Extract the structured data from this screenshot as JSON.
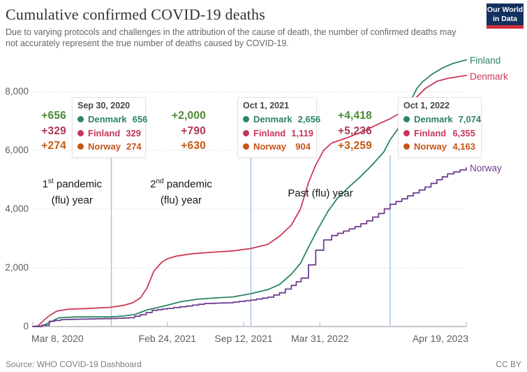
{
  "header": {
    "title": "Cumulative confirmed COVID-19 deaths",
    "subtitle_line1": "Due to varying protocols and challenges in the attribution of the cause of death, the number of confirmed deaths may",
    "subtitle_line2": "not accurately represent the true number of deaths caused by COVID-19.",
    "logo": {
      "line1": "Our World",
      "line2": "in Data",
      "bg_color": "#13315F",
      "accent_color": "#D1303E"
    }
  },
  "footer": {
    "source": "Source: WHO COVID-19 Dashboard",
    "license": "CC BY"
  },
  "colors": {
    "denmark_line": "#cb3a56",
    "finland_line": "#2C8465",
    "norway_line": "#6D3E91",
    "tooltip_row1": "#2C8465",
    "tooltip_row2": "#C7365B",
    "norway_orange": "#C75419",
    "delta_green": "#4A8A35",
    "delta_red": "#AC3A52",
    "delta_orange": "#C45911",
    "marker_blue": "#a9c8ea"
  },
  "chart_data": {
    "type": "line",
    "title": "Cumulative confirmed COVID-19 deaths",
    "x_range": [
      "2020-03-08",
      "2023-04-19"
    ],
    "ylim": [
      0,
      9500
    ],
    "grid": "horizontal-dotted",
    "legend_position": "end-of-line-labels",
    "x_ticks": [
      {
        "date": "2020-03-08",
        "label": "Mar 8, 2020"
      },
      {
        "date": "2021-02-24",
        "label": "Feb 24, 2021"
      },
      {
        "date": "2021-09-12",
        "label": "Sep 12, 2021"
      },
      {
        "date": "2022-03-31",
        "label": "Mar 31, 2022"
      },
      {
        "date": "2023-04-19",
        "label": "Apr 19, 2023"
      }
    ],
    "y_ticks": [
      {
        "value": 0,
        "label": "0"
      },
      {
        "value": 2000,
        "label": "2,000"
      },
      {
        "value": 4000,
        "label": "4,000"
      },
      {
        "value": 6000,
        "label": "6,000"
      },
      {
        "value": 8000,
        "label": "8,000"
      }
    ],
    "markers": [
      {
        "date": "2020-09-30"
      },
      {
        "date": "2021-10-01"
      },
      {
        "date": "2022-10-01"
      }
    ],
    "series": [
      {
        "name": "Denmark",
        "color": "#cb3a56",
        "line_style": "linear",
        "points": [
          [
            "2020-03-08",
            0
          ],
          [
            "2020-03-22",
            24
          ],
          [
            "2020-04-05",
            203
          ],
          [
            "2020-04-20",
            370
          ],
          [
            "2020-05-10",
            526
          ],
          [
            "2020-06-10",
            593
          ],
          [
            "2020-08-01",
            615
          ],
          [
            "2020-09-30",
            656
          ],
          [
            "2020-11-01",
            721
          ],
          [
            "2020-11-25",
            810
          ],
          [
            "2020-12-15",
            975
          ],
          [
            "2021-01-01",
            1298
          ],
          [
            "2021-01-20",
            1900
          ],
          [
            "2021-02-10",
            2200
          ],
          [
            "2021-02-24",
            2310
          ],
          [
            "2021-03-20",
            2400
          ],
          [
            "2021-05-01",
            2480
          ],
          [
            "2021-07-01",
            2537
          ],
          [
            "2021-08-15",
            2576
          ],
          [
            "2021-10-01",
            2656
          ],
          [
            "2021-11-15",
            2800
          ],
          [
            "2021-12-15",
            3075
          ],
          [
            "2022-01-15",
            3450
          ],
          [
            "2022-02-08",
            4000
          ],
          [
            "2022-03-01",
            4900
          ],
          [
            "2022-03-20",
            5500
          ],
          [
            "2022-04-10",
            6000
          ],
          [
            "2022-05-01",
            6250
          ],
          [
            "2022-06-15",
            6450
          ],
          [
            "2022-08-01",
            6700
          ],
          [
            "2022-09-01",
            6900
          ],
          [
            "2022-10-01",
            7074
          ],
          [
            "2022-11-01",
            7300
          ],
          [
            "2022-12-01",
            7700
          ],
          [
            "2023-01-01",
            8100
          ],
          [
            "2023-02-01",
            8350
          ],
          [
            "2023-03-01",
            8450
          ],
          [
            "2023-04-19",
            8550
          ]
        ]
      },
      {
        "name": "Finland",
        "color": "#2C8465",
        "line_style": "linear",
        "points": [
          [
            "2020-03-08",
            0
          ],
          [
            "2020-04-01",
            17
          ],
          [
            "2020-04-21",
            141
          ],
          [
            "2020-05-15",
            297
          ],
          [
            "2020-07-01",
            328
          ],
          [
            "2020-09-30",
            329
          ],
          [
            "2020-11-01",
            360
          ],
          [
            "2020-12-01",
            415
          ],
          [
            "2021-01-01",
            561
          ],
          [
            "2021-02-01",
            655
          ],
          [
            "2021-02-24",
            726
          ],
          [
            "2021-04-01",
            850
          ],
          [
            "2021-05-15",
            930
          ],
          [
            "2021-07-01",
            977
          ],
          [
            "2021-08-15",
            1010
          ],
          [
            "2021-10-01",
            1119
          ],
          [
            "2021-11-15",
            1260
          ],
          [
            "2021-12-15",
            1430
          ],
          [
            "2022-01-15",
            1780
          ],
          [
            "2022-02-08",
            2150
          ],
          [
            "2022-03-01",
            2700
          ],
          [
            "2022-03-25",
            3300
          ],
          [
            "2022-04-20",
            3900
          ],
          [
            "2022-05-15",
            4350
          ],
          [
            "2022-06-15",
            4750
          ],
          [
            "2022-07-15",
            5100
          ],
          [
            "2022-08-15",
            5500
          ],
          [
            "2022-09-15",
            5950
          ],
          [
            "2022-10-01",
            6355
          ],
          [
            "2022-10-20",
            6700
          ],
          [
            "2022-11-10",
            7200
          ],
          [
            "2022-11-25",
            7700
          ],
          [
            "2022-12-10",
            8100
          ],
          [
            "2022-12-25",
            8330
          ],
          [
            "2023-01-20",
            8600
          ],
          [
            "2023-02-15",
            8800
          ],
          [
            "2023-03-15",
            8960
          ],
          [
            "2023-04-19",
            9080
          ]
        ]
      },
      {
        "name": "Norway",
        "color": "#6D3E91",
        "line_style": "step",
        "points": [
          [
            "2020-03-08",
            0
          ],
          [
            "2020-04-01",
            44
          ],
          [
            "2020-04-20",
            181
          ],
          [
            "2020-05-20",
            235
          ],
          [
            "2020-07-15",
            255
          ],
          [
            "2020-09-30",
            274
          ],
          [
            "2020-11-15",
            300
          ],
          [
            "2020-12-15",
            404
          ],
          [
            "2021-01-15",
            550
          ],
          [
            "2021-02-24",
            620
          ],
          [
            "2021-04-15",
            700
          ],
          [
            "2021-06-01",
            785
          ],
          [
            "2021-08-01",
            810
          ],
          [
            "2021-10-01",
            904
          ],
          [
            "2021-11-15",
            1000
          ],
          [
            "2021-12-15",
            1150
          ],
          [
            "2022-01-15",
            1400
          ],
          [
            "2022-02-10",
            1650
          ],
          [
            "2022-03-01",
            2100
          ],
          [
            "2022-03-20",
            2600
          ],
          [
            "2022-04-10",
            2950
          ],
          [
            "2022-05-01",
            3100
          ],
          [
            "2022-06-01",
            3250
          ],
          [
            "2022-07-01",
            3400
          ],
          [
            "2022-08-01",
            3600
          ],
          [
            "2022-09-01",
            3850
          ],
          [
            "2022-10-01",
            4163
          ],
          [
            "2022-11-01",
            4350
          ],
          [
            "2022-12-01",
            4550
          ],
          [
            "2023-01-01",
            4750
          ],
          [
            "2023-02-01",
            5000
          ],
          [
            "2023-03-01",
            5200
          ],
          [
            "2023-04-19",
            5400
          ]
        ]
      }
    ]
  },
  "tooltips": [
    {
      "date_label": "Sep 30, 2020",
      "rows": [
        {
          "label": "Denmark",
          "value": "656",
          "color": "#2C8465"
        },
        {
          "label": "Finland",
          "value": "329",
          "color": "#C7365B"
        },
        {
          "label": "Norway",
          "value": "274",
          "color": "#C75419"
        }
      ]
    },
    {
      "date_label": "Oct 1, 2021",
      "rows": [
        {
          "label": "Denmark",
          "value": "2,656",
          "color": "#2C8465"
        },
        {
          "label": "Finland",
          "value": "1,119",
          "color": "#C7365B"
        },
        {
          "label": "Norway",
          "value": "904",
          "color": "#C75419"
        }
      ]
    },
    {
      "date_label": "Oct 1, 2022",
      "rows": [
        {
          "label": "Denmark",
          "value": "7,074",
          "color": "#2C8465"
        },
        {
          "label": "Finland",
          "value": "6,355",
          "color": "#C7365B"
        },
        {
          "label": "Norway",
          "value": "4,163",
          "color": "#C75419"
        }
      ]
    }
  ],
  "deltas": [
    {
      "values": [
        {
          "text": "+656",
          "color": "#4A8A35"
        },
        {
          "text": "+329",
          "color": "#AC3A52"
        },
        {
          "text": "+274",
          "color": "#C45911"
        }
      ]
    },
    {
      "values": [
        {
          "text": "+2,000",
          "color": "#4A8A35"
        },
        {
          "text": "+790",
          "color": "#AC3A52"
        },
        {
          "text": "+630",
          "color": "#C45911"
        }
      ]
    },
    {
      "values": [
        {
          "text": "+4,418",
          "color": "#4A8A35"
        },
        {
          "text": "+5,236",
          "color": "#AC3A52"
        },
        {
          "text": "+3,259",
          "color": "#C45911"
        }
      ]
    }
  ],
  "annotations": [
    {
      "pre": "1",
      "sup": "st",
      "post": " pandemic",
      "line2": "(flu) year"
    },
    {
      "pre": "2",
      "sup": "nd",
      "post": " pandemic",
      "line2": "(flu) year"
    },
    {
      "pre": "Past (flu) year",
      "sup": "",
      "post": "",
      "line2": ""
    }
  ]
}
